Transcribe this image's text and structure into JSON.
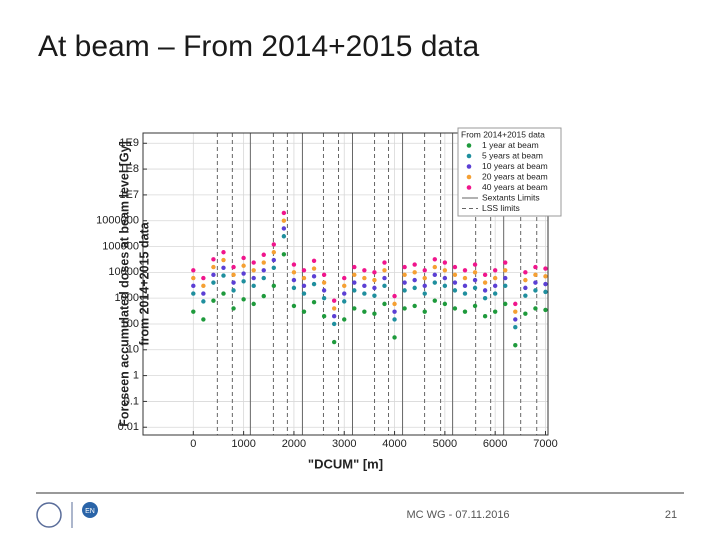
{
  "slide": {
    "title": "At beam – From 2014+2015 data",
    "footer": "MC WG - 07.11.2016",
    "page": "21",
    "logo_text": "EN"
  },
  "chart_data": {
    "type": "scatter",
    "log_y": true,
    "grid": true,
    "xlabel": "\"DCUM\" [m]",
    "ylabel": [
      "Foreseen accumulated doses at beam level [Gy]",
      "from 2014+2015 data"
    ],
    "legend_title": "From 2014+2015 data",
    "legend_position": "upper right",
    "xlim": [
      -1000,
      7050
    ],
    "xticks": [
      0,
      1000,
      2000,
      3000,
      4000,
      5000,
      6000,
      7000
    ],
    "ylim": [
      0.005,
      2500000000
    ],
    "yticks": [
      0.01,
      0.1,
      1,
      10,
      100,
      1000,
      10000,
      100000,
      1000000,
      {
        "value": 10000000,
        "label": "1E7"
      },
      {
        "value": 100000000,
        "label": "1E8"
      },
      {
        "value": 1000000000,
        "label": "1E9"
      }
    ],
    "x": [
      0,
      200,
      400,
      600,
      800,
      1000,
      1200,
      1400,
      1600,
      1800,
      2000,
      2200,
      2400,
      2600,
      2800,
      3000,
      3200,
      3400,
      3600,
      3800,
      4000,
      4200,
      4400,
      4600,
      4800,
      5000,
      5200,
      5400,
      5600,
      5800,
      6000,
      6200,
      6400,
      6600,
      6800,
      7000
    ],
    "series": [
      {
        "name": "1 year at beam",
        "color": "#1e9a3c",
        "values": [
          300,
          150,
          800,
          1500,
          400,
          900,
          600,
          1200,
          3000,
          50000,
          500,
          300,
          700,
          200,
          20,
          150,
          400,
          300,
          250,
          600,
          30,
          400,
          500,
          300,
          800,
          600,
          400,
          300,
          500,
          200,
          300,
          600,
          15,
          250,
          400,
          350
        ]
      },
      {
        "name": "5 years at beam",
        "color": "#1f8f9e",
        "values": [
          1500,
          750,
          4000,
          7500,
          2000,
          4500,
          3000,
          6000,
          15000,
          250000,
          2500,
          1500,
          3500,
          1000,
          100,
          750,
          2000,
          1500,
          1250,
          3000,
          150,
          2000,
          2500,
          1500,
          4000,
          3000,
          2000,
          1500,
          2500,
          1000,
          1500,
          3000,
          75,
          1250,
          2000,
          1750
        ]
      },
      {
        "name": "10 years at beam",
        "color": "#5b3fd4",
        "values": [
          3000,
          1500,
          8000,
          15000,
          4000,
          9000,
          6000,
          12000,
          30000,
          500000,
          5000,
          3000,
          7000,
          2000,
          200,
          1500,
          4000,
          3000,
          2500,
          6000,
          300,
          4000,
          5000,
          3000,
          8000,
          6000,
          4000,
          3000,
          5000,
          2000,
          3000,
          6000,
          150,
          2500,
          4000,
          3500
        ]
      },
      {
        "name": "20 years at beam",
        "color": "#f5a033",
        "values": [
          6000,
          3000,
          16000,
          30000,
          8000,
          18000,
          12000,
          24000,
          60000,
          1000000,
          10000,
          6000,
          14000,
          4000,
          400,
          3000,
          8000,
          6000,
          5000,
          12000,
          600,
          8000,
          10000,
          6000,
          16000,
          12000,
          8000,
          6000,
          10000,
          4000,
          6000,
          12000,
          300,
          5000,
          8000,
          7000
        ]
      },
      {
        "name": "40 years at beam",
        "color": "#f0158c",
        "values": [
          12000,
          6000,
          32000,
          60000,
          16000,
          36000,
          24000,
          48000,
          120000,
          2000000,
          20000,
          12000,
          28000,
          8000,
          800,
          6000,
          16000,
          12000,
          10000,
          24000,
          1200,
          16000,
          20000,
          12000,
          32000,
          24000,
          16000,
          12000,
          20000,
          8000,
          12000,
          24000,
          600,
          10000,
          16000,
          14000
        ]
      }
    ],
    "sextant_label": "Sextants Limits",
    "sextant_limits": [
      1134,
      2169,
      3164,
      4159,
      5154,
      6169
    ],
    "lss_label": "LSS limits",
    "lss_limits": [
      478,
      776,
      1592,
      1870,
      2587,
      2886,
      3602,
      3880,
      4597,
      4915,
      5612,
      5910,
      6507,
      6826
    ]
  }
}
